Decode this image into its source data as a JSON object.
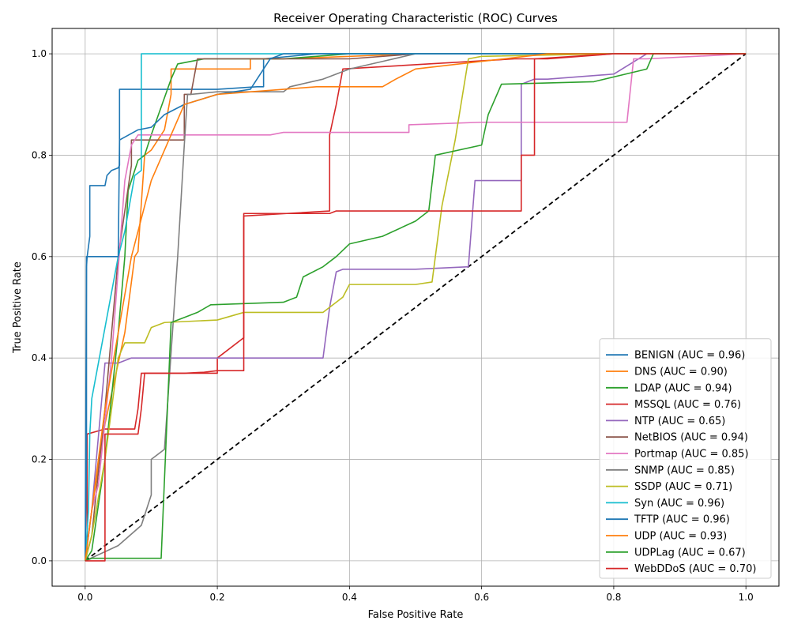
{
  "chart_data": {
    "type": "line",
    "title": "Receiver Operating Characteristic (ROC) Curves",
    "xlabel": "False Positive Rate",
    "ylabel": "True Positive Rate",
    "xlim": [
      -0.05,
      1.05
    ],
    "ylim": [
      -0.05,
      1.05
    ],
    "xticks": [
      "0.0",
      "0.2",
      "0.4",
      "0.6",
      "0.8",
      "1.0"
    ],
    "yticks": [
      "0.0",
      "0.2",
      "0.4",
      "0.6",
      "0.8",
      "1.0"
    ],
    "grid": true,
    "legend_position": "lower-right",
    "diagonal": {
      "x": [
        0,
        1
      ],
      "y": [
        0,
        1
      ],
      "color": "#000000",
      "style": "dashed"
    },
    "series": [
      {
        "name": "BENIGN (AUC = 0.96)",
        "color": "#1f77b4",
        "x": [
          0,
          0.002,
          0.003,
          0.005,
          0.007,
          0.007,
          0.02,
          0.03,
          0.033,
          0.04,
          0.05,
          0.052,
          0.052,
          0.1,
          0.15,
          0.2,
          0.26,
          0.27,
          0.27,
          0.35,
          0.5,
          0.8,
          1.0
        ],
        "y": [
          0,
          0.58,
          0.6,
          0.62,
          0.64,
          0.74,
          0.74,
          0.74,
          0.76,
          0.77,
          0.775,
          0.78,
          0.93,
          0.93,
          0.93,
          0.93,
          0.935,
          0.935,
          0.99,
          1.0,
          1.0,
          1.0,
          1.0
        ]
      },
      {
        "name": "DNS (AUC = 0.90)",
        "color": "#ff7f0e",
        "x": [
          0,
          0.01,
          0.03,
          0.05,
          0.06,
          0.07,
          0.075,
          0.08,
          0.09,
          0.1,
          0.12,
          0.13,
          0.13,
          0.2,
          0.25,
          0.25,
          0.3,
          0.5,
          0.7,
          1.0
        ],
        "y": [
          0,
          0.1,
          0.27,
          0.39,
          0.45,
          0.55,
          0.6,
          0.61,
          0.8,
          0.81,
          0.85,
          0.92,
          0.97,
          0.97,
          0.97,
          0.99,
          0.99,
          1.0,
          1.0,
          1.0
        ]
      },
      {
        "name": "LDAP (AUC = 0.94)",
        "color": "#2ca02c",
        "x": [
          0,
          0.01,
          0.03,
          0.05,
          0.06,
          0.065,
          0.08,
          0.09,
          0.1,
          0.13,
          0.14,
          0.16,
          0.18,
          0.25,
          0.3,
          0.4,
          0.5,
          0.6,
          0.8,
          1.0
        ],
        "y": [
          0,
          0.02,
          0.2,
          0.45,
          0.6,
          0.73,
          0.79,
          0.8,
          0.84,
          0.95,
          0.98,
          0.985,
          0.99,
          0.99,
          0.99,
          1.0,
          1.0,
          1.0,
          1.0,
          1.0
        ]
      },
      {
        "name": "MSSQL (AUC = 0.76)",
        "color": "#d62728",
        "x": [
          0,
          0.003,
          0.003,
          0.03,
          0.045,
          0.075,
          0.08,
          0.085,
          0.1,
          0.12,
          0.15,
          0.18,
          0.2,
          0.2,
          0.24,
          0.24,
          0.37,
          0.37,
          0.38,
          0.39,
          0.65,
          0.7,
          0.8,
          1.0
        ],
        "y": [
          0,
          0.02,
          0.25,
          0.26,
          0.26,
          0.26,
          0.3,
          0.37,
          0.37,
          0.37,
          0.37,
          0.37,
          0.37,
          0.4,
          0.44,
          0.68,
          0.69,
          0.84,
          0.9,
          0.97,
          0.99,
          0.99,
          1.0,
          1.0
        ]
      },
      {
        "name": "NTP (AUC = 0.65)",
        "color": "#9467bd",
        "x": [
          0,
          0.01,
          0.03,
          0.05,
          0.07,
          0.1,
          0.2,
          0.3,
          0.36,
          0.37,
          0.38,
          0.39,
          0.5,
          0.58,
          0.59,
          0.6,
          0.66,
          0.66,
          0.68,
          0.7,
          0.8,
          0.85,
          1.0
        ],
        "y": [
          0,
          0.1,
          0.39,
          0.39,
          0.4,
          0.4,
          0.4,
          0.4,
          0.4,
          0.5,
          0.57,
          0.575,
          0.575,
          0.58,
          0.75,
          0.75,
          0.75,
          0.94,
          0.95,
          0.95,
          0.96,
          1.0,
          1.0
        ]
      },
      {
        "name": "NetBIOS (AUC = 0.94)",
        "color": "#8c564b",
        "x": [
          0,
          0.01,
          0.03,
          0.05,
          0.07,
          0.07,
          0.15,
          0.15,
          0.16,
          0.17,
          0.2,
          0.3,
          0.4,
          0.5,
          0.6,
          0.7,
          0.8,
          1.0
        ],
        "y": [
          0,
          0.05,
          0.3,
          0.6,
          0.78,
          0.83,
          0.83,
          0.92,
          0.92,
          0.99,
          0.99,
          0.99,
          0.99,
          1.0,
          1.0,
          1.0,
          1.0,
          1.0
        ]
      },
      {
        "name": "Portmap (AUC = 0.85)",
        "color": "#e377c2",
        "x": [
          0,
          0.005,
          0.01,
          0.02,
          0.04,
          0.06,
          0.07,
          0.08,
          0.1,
          0.2,
          0.28,
          0.3,
          0.49,
          0.49,
          0.6,
          0.7,
          0.8,
          0.82,
          0.83,
          0.85,
          1.0
        ],
        "y": [
          0,
          0.05,
          0.1,
          0.15,
          0.4,
          0.75,
          0.82,
          0.84,
          0.84,
          0.84,
          0.84,
          0.845,
          0.845,
          0.86,
          0.865,
          0.865,
          0.865,
          0.865,
          0.99,
          0.99,
          1.0
        ]
      },
      {
        "name": "SNMP (AUC = 0.85)",
        "color": "#7f7f7f",
        "x": [
          0,
          0.05,
          0.085,
          0.1,
          0.1,
          0.12,
          0.14,
          0.15,
          0.155,
          0.16,
          0.2,
          0.3,
          0.31,
          0.36,
          0.4,
          0.45,
          0.5,
          0.6,
          0.8,
          1.0
        ],
        "y": [
          0,
          0.03,
          0.07,
          0.13,
          0.2,
          0.22,
          0.6,
          0.82,
          0.92,
          0.92,
          0.925,
          0.925,
          0.935,
          0.95,
          0.97,
          0.985,
          1.0,
          1.0,
          1.0,
          1.0
        ]
      },
      {
        "name": "SSDP (AUC = 0.71)",
        "color": "#bcbd22",
        "x": [
          0,
          0.01,
          0.03,
          0.05,
          0.06,
          0.09,
          0.1,
          0.12,
          0.2,
          0.24,
          0.36,
          0.37,
          0.39,
          0.4,
          0.5,
          0.525,
          0.54,
          0.56,
          0.58,
          0.6,
          0.8,
          1.0
        ],
        "y": [
          0,
          0.05,
          0.2,
          0.4,
          0.43,
          0.43,
          0.46,
          0.47,
          0.475,
          0.49,
          0.49,
          0.5,
          0.52,
          0.545,
          0.545,
          0.55,
          0.7,
          0.83,
          0.99,
          0.995,
          1.0,
          1.0
        ]
      },
      {
        "name": "Syn (AUC = 0.96)",
        "color": "#17becf",
        "x": [
          0,
          0.005,
          0.007,
          0.01,
          0.05,
          0.06,
          0.075,
          0.085,
          0.085,
          0.1,
          0.3,
          0.5,
          0.8,
          1.0
        ],
        "y": [
          0,
          0.1,
          0.25,
          0.32,
          0.6,
          0.65,
          0.76,
          0.77,
          1.0,
          1.0,
          1.0,
          1.0,
          1.0,
          1.0
        ]
      },
      {
        "name": "TFTP (AUC = 0.96)",
        "color": "#1f77b4",
        "x": [
          0,
          0.002,
          0.002,
          0.05,
          0.052,
          0.08,
          0.1,
          0.12,
          0.15,
          0.2,
          0.25,
          0.28,
          0.3,
          0.5,
          0.8,
          1.0
        ],
        "y": [
          0,
          0.2,
          0.6,
          0.6,
          0.83,
          0.85,
          0.855,
          0.88,
          0.9,
          0.92,
          0.93,
          0.99,
          1.0,
          1.0,
          1.0,
          1.0
        ]
      },
      {
        "name": "UDP (AUC = 0.93)",
        "color": "#ff7f0e",
        "x": [
          0,
          0.01,
          0.03,
          0.05,
          0.07,
          0.1,
          0.15,
          0.2,
          0.3,
          0.35,
          0.45,
          0.47,
          0.5,
          0.6,
          0.7,
          0.8,
          1.0
        ],
        "y": [
          0,
          0.1,
          0.3,
          0.45,
          0.6,
          0.75,
          0.9,
          0.92,
          0.93,
          0.935,
          0.935,
          0.95,
          0.97,
          0.985,
          1.0,
          1.0,
          1.0
        ]
      },
      {
        "name": "UDPLag (AUC = 0.67)",
        "color": "#2ca02c",
        "x": [
          0,
          0.01,
          0.115,
          0.13,
          0.15,
          0.17,
          0.19,
          0.3,
          0.32,
          0.33,
          0.36,
          0.38,
          0.4,
          0.45,
          0.5,
          0.52,
          0.53,
          0.6,
          0.61,
          0.63,
          0.77,
          0.85,
          0.86,
          1.0
        ],
        "y": [
          0,
          0.005,
          0.005,
          0.47,
          0.48,
          0.49,
          0.505,
          0.51,
          0.52,
          0.56,
          0.58,
          0.6,
          0.625,
          0.64,
          0.67,
          0.69,
          0.8,
          0.82,
          0.88,
          0.94,
          0.945,
          0.97,
          1.0,
          1.0
        ]
      },
      {
        "name": "WebDDoS (AUC = 0.70)",
        "color": "#d62728",
        "x": [
          0,
          0.03,
          0.03,
          0.06,
          0.08,
          0.085,
          0.09,
          0.12,
          0.15,
          0.18,
          0.2,
          0.24,
          0.24,
          0.37,
          0.38,
          0.39,
          0.5,
          0.6,
          0.66,
          0.66,
          0.68,
          0.68,
          0.8,
          1.0
        ],
        "y": [
          0,
          0,
          0.25,
          0.25,
          0.25,
          0.3,
          0.37,
          0.37,
          0.37,
          0.372,
          0.375,
          0.375,
          0.685,
          0.685,
          0.69,
          0.69,
          0.69,
          0.69,
          0.69,
          0.8,
          0.8,
          0.99,
          1.0,
          1.0
        ]
      }
    ]
  }
}
